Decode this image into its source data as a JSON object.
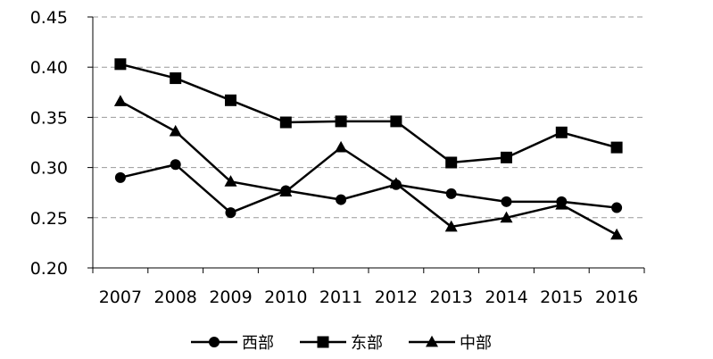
{
  "chart_data": {
    "type": "line",
    "x": [
      "2007",
      "2008",
      "2009",
      "2010",
      "2011",
      "2012",
      "2013",
      "2014",
      "2015",
      "2016"
    ],
    "ylim": [
      0.2,
      0.45
    ],
    "yticks": [
      "0.20",
      "0.25",
      "0.30",
      "0.35",
      "0.40",
      "0.45"
    ],
    "grid": "horizontal dashed",
    "legend_position": "bottom",
    "series": [
      {
        "name": "西部",
        "marker": "circle",
        "values": [
          0.29,
          0.303,
          0.255,
          0.277,
          0.268,
          0.283,
          0.274,
          0.266,
          0.266,
          0.26
        ]
      },
      {
        "name": "东部",
        "marker": "square",
        "values": [
          0.403,
          0.389,
          0.367,
          0.345,
          0.346,
          0.346,
          0.305,
          0.31,
          0.335,
          0.32
        ]
      },
      {
        "name": "中部",
        "marker": "triangle",
        "values": [
          0.366,
          0.336,
          0.286,
          0.276,
          0.32,
          0.284,
          0.241,
          0.25,
          0.263,
          0.233
        ]
      }
    ],
    "line_color": "#000000",
    "grid_color": "#999999"
  }
}
